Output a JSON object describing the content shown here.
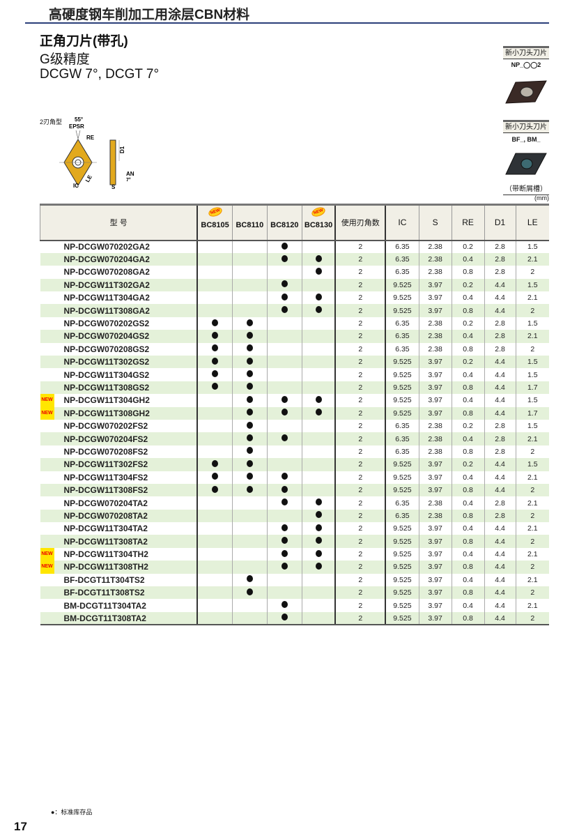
{
  "header": {
    "title": "高硬度钢车削加工用涂层CBN材料"
  },
  "section": {
    "title": "正角刀片(带孔)",
    "grade": "G级精度",
    "type": "DCGW 7°, DCGT 7°"
  },
  "diagram": {
    "label": "2刃角型",
    "angle": "55°",
    "epsr": "EPSR",
    "re": "RE",
    "le": "LE",
    "ic": "IC",
    "d1": "D1",
    "an": "AN",
    "an_angle": "7°",
    "s": "S"
  },
  "side": [
    {
      "label": "新小刀头刀片",
      "code": "NP_◯◯2"
    },
    {
      "label": "新小刀头刀片",
      "code": "BF_, BM_",
      "caption": "（带断屑槽）"
    }
  ],
  "unit": "(mm)",
  "colors": {
    "row_alt": "#e4f1d9",
    "header_bg": "#f1efe6",
    "rule": "#2b3f7a",
    "new_bg": "#ffe600",
    "new_text": "#e00000"
  },
  "table": {
    "headers": {
      "model": "型 号",
      "grades": [
        "BC8105",
        "BC8110",
        "BC8120",
        "BC8130"
      ],
      "grade_new": [
        true,
        false,
        false,
        true
      ],
      "edges": "使用刃角数",
      "ic": "IC",
      "s": "S",
      "re": "RE",
      "d1": "D1",
      "le": "LE"
    },
    "new_label": "NEW",
    "rows": [
      {
        "model": "NP-DCGW070202GA2",
        "new": false,
        "g": [
          0,
          0,
          1,
          0
        ],
        "edges": "2",
        "ic": "6.35",
        "s": "2.38",
        "re": "0.2",
        "d1": "2.8",
        "le": "1.5"
      },
      {
        "model": "NP-DCGW070204GA2",
        "new": false,
        "g": [
          0,
          0,
          1,
          1
        ],
        "edges": "2",
        "ic": "6.35",
        "s": "2.38",
        "re": "0.4",
        "d1": "2.8",
        "le": "2.1"
      },
      {
        "model": "NP-DCGW070208GA2",
        "new": false,
        "g": [
          0,
          0,
          0,
          1
        ],
        "edges": "2",
        "ic": "6.35",
        "s": "2.38",
        "re": "0.8",
        "d1": "2.8",
        "le": "2"
      },
      {
        "model": "NP-DCGW11T302GA2",
        "new": false,
        "g": [
          0,
          0,
          1,
          0
        ],
        "edges": "2",
        "ic": "9.525",
        "s": "3.97",
        "re": "0.2",
        "d1": "4.4",
        "le": "1.5"
      },
      {
        "model": "NP-DCGW11T304GA2",
        "new": false,
        "g": [
          0,
          0,
          1,
          1
        ],
        "edges": "2",
        "ic": "9.525",
        "s": "3.97",
        "re": "0.4",
        "d1": "4.4",
        "le": "2.1"
      },
      {
        "model": "NP-DCGW11T308GA2",
        "new": false,
        "g": [
          0,
          0,
          1,
          1
        ],
        "edges": "2",
        "ic": "9.525",
        "s": "3.97",
        "re": "0.8",
        "d1": "4.4",
        "le": "2"
      },
      {
        "model": "NP-DCGW070202GS2",
        "new": false,
        "g": [
          1,
          1,
          0,
          0
        ],
        "edges": "2",
        "ic": "6.35",
        "s": "2.38",
        "re": "0.2",
        "d1": "2.8",
        "le": "1.5"
      },
      {
        "model": "NP-DCGW070204GS2",
        "new": false,
        "g": [
          1,
          1,
          0,
          0
        ],
        "edges": "2",
        "ic": "6.35",
        "s": "2.38",
        "re": "0.4",
        "d1": "2.8",
        "le": "2.1"
      },
      {
        "model": "NP-DCGW070208GS2",
        "new": false,
        "g": [
          1,
          1,
          0,
          0
        ],
        "edges": "2",
        "ic": "6.35",
        "s": "2.38",
        "re": "0.8",
        "d1": "2.8",
        "le": "2"
      },
      {
        "model": "NP-DCGW11T302GS2",
        "new": false,
        "g": [
          1,
          1,
          0,
          0
        ],
        "edges": "2",
        "ic": "9.525",
        "s": "3.97",
        "re": "0.2",
        "d1": "4.4",
        "le": "1.5"
      },
      {
        "model": "NP-DCGW11T304GS2",
        "new": false,
        "g": [
          1,
          1,
          0,
          0
        ],
        "edges": "2",
        "ic": "9.525",
        "s": "3.97",
        "re": "0.4",
        "d1": "4.4",
        "le": "1.5"
      },
      {
        "model": "NP-DCGW11T308GS2",
        "new": false,
        "g": [
          1,
          1,
          0,
          0
        ],
        "edges": "2",
        "ic": "9.525",
        "s": "3.97",
        "re": "0.8",
        "d1": "4.4",
        "le": "1.7"
      },
      {
        "model": "NP-DCGW11T304GH2",
        "new": true,
        "g": [
          0,
          1,
          1,
          1
        ],
        "edges": "2",
        "ic": "9.525",
        "s": "3.97",
        "re": "0.4",
        "d1": "4.4",
        "le": "1.5"
      },
      {
        "model": "NP-DCGW11T308GH2",
        "new": true,
        "g": [
          0,
          1,
          1,
          1
        ],
        "edges": "2",
        "ic": "9.525",
        "s": "3.97",
        "re": "0.8",
        "d1": "4.4",
        "le": "1.7"
      },
      {
        "model": "NP-DCGW070202FS2",
        "new": false,
        "g": [
          0,
          1,
          0,
          0
        ],
        "edges": "2",
        "ic": "6.35",
        "s": "2.38",
        "re": "0.2",
        "d1": "2.8",
        "le": "1.5"
      },
      {
        "model": "NP-DCGW070204FS2",
        "new": false,
        "g": [
          0,
          1,
          1,
          0
        ],
        "edges": "2",
        "ic": "6.35",
        "s": "2.38",
        "re": "0.4",
        "d1": "2.8",
        "le": "2.1"
      },
      {
        "model": "NP-DCGW070208FS2",
        "new": false,
        "g": [
          0,
          1,
          0,
          0
        ],
        "edges": "2",
        "ic": "6.35",
        "s": "2.38",
        "re": "0.8",
        "d1": "2.8",
        "le": "2"
      },
      {
        "model": "NP-DCGW11T302FS2",
        "new": false,
        "g": [
          1,
          1,
          0,
          0
        ],
        "edges": "2",
        "ic": "9.525",
        "s": "3.97",
        "re": "0.2",
        "d1": "4.4",
        "le": "1.5"
      },
      {
        "model": "NP-DCGW11T304FS2",
        "new": false,
        "g": [
          1,
          1,
          1,
          0
        ],
        "edges": "2",
        "ic": "9.525",
        "s": "3.97",
        "re": "0.4",
        "d1": "4.4",
        "le": "2.1"
      },
      {
        "model": "NP-DCGW11T308FS2",
        "new": false,
        "g": [
          1,
          1,
          1,
          0
        ],
        "edges": "2",
        "ic": "9.525",
        "s": "3.97",
        "re": "0.8",
        "d1": "4.4",
        "le": "2"
      },
      {
        "model": "NP-DCGW070204TA2",
        "new": false,
        "g": [
          0,
          0,
          1,
          1
        ],
        "edges": "2",
        "ic": "6.35",
        "s": "2.38",
        "re": "0.4",
        "d1": "2.8",
        "le": "2.1"
      },
      {
        "model": "NP-DCGW070208TA2",
        "new": false,
        "g": [
          0,
          0,
          0,
          1
        ],
        "edges": "2",
        "ic": "6.35",
        "s": "2.38",
        "re": "0.8",
        "d1": "2.8",
        "le": "2"
      },
      {
        "model": "NP-DCGW11T304TA2",
        "new": false,
        "g": [
          0,
          0,
          1,
          1
        ],
        "edges": "2",
        "ic": "9.525",
        "s": "3.97",
        "re": "0.4",
        "d1": "4.4",
        "le": "2.1"
      },
      {
        "model": "NP-DCGW11T308TA2",
        "new": false,
        "g": [
          0,
          0,
          1,
          1
        ],
        "edges": "2",
        "ic": "9.525",
        "s": "3.97",
        "re": "0.8",
        "d1": "4.4",
        "le": "2"
      },
      {
        "model": "NP-DCGW11T304TH2",
        "new": true,
        "g": [
          0,
          0,
          1,
          1
        ],
        "edges": "2",
        "ic": "9.525",
        "s": "3.97",
        "re": "0.4",
        "d1": "4.4",
        "le": "2.1"
      },
      {
        "model": "NP-DCGW11T308TH2",
        "new": true,
        "g": [
          0,
          0,
          1,
          1
        ],
        "edges": "2",
        "ic": "9.525",
        "s": "3.97",
        "re": "0.8",
        "d1": "4.4",
        "le": "2"
      },
      {
        "model": "BF-DCGT11T304TS2",
        "new": false,
        "g": [
          0,
          1,
          0,
          0
        ],
        "edges": "2",
        "ic": "9.525",
        "s": "3.97",
        "re": "0.4",
        "d1": "4.4",
        "le": "2.1"
      },
      {
        "model": "BF-DCGT11T308TS2",
        "new": false,
        "g": [
          0,
          1,
          0,
          0
        ],
        "edges": "2",
        "ic": "9.525",
        "s": "3.97",
        "re": "0.8",
        "d1": "4.4",
        "le": "2"
      },
      {
        "model": "BM-DCGT11T304TA2",
        "new": false,
        "g": [
          0,
          0,
          1,
          0
        ],
        "edges": "2",
        "ic": "9.525",
        "s": "3.97",
        "re": "0.4",
        "d1": "4.4",
        "le": "2.1"
      },
      {
        "model": "BM-DCGT11T308TA2",
        "new": false,
        "g": [
          0,
          0,
          1,
          0
        ],
        "edges": "2",
        "ic": "9.525",
        "s": "3.97",
        "re": "0.8",
        "d1": "4.4",
        "le": "2"
      }
    ]
  },
  "legend": "●：标准库存品",
  "page_number": "17"
}
